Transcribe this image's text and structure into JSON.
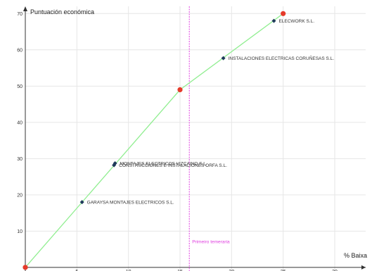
{
  "chart_data": {
    "type": "scatter",
    "title": "",
    "xlabel": "% Baixa",
    "ylabel": "Puntuación económica",
    "xlim": [
      0,
      33
    ],
    "ylim": [
      -1,
      72
    ],
    "xticks": [
      5,
      10,
      15,
      20,
      25,
      30
    ],
    "yticks": [
      10,
      20,
      30,
      40,
      50,
      60,
      70
    ],
    "grid": true,
    "colors": {
      "line": "#90ee90",
      "point": "#1f3a5a",
      "key_point": "#e53b2a",
      "threshold": "#e040e0",
      "grid": "#e6e6e6"
    },
    "curve": [
      {
        "x": 0,
        "y": 0
      },
      {
        "x": 15,
        "y": 49
      },
      {
        "x": 25,
        "y": 70
      }
    ],
    "key_points": [
      {
        "x": 0,
        "y": 0
      },
      {
        "x": 15,
        "y": 49
      },
      {
        "x": 25,
        "y": 70
      }
    ],
    "points": [
      {
        "label": "ELECWORK S.L.",
        "x": 24.1,
        "y": 68
      },
      {
        "label": "INSTALACIONES ELECTRICAS CORUÑESAS S.L.",
        "x": 19.2,
        "y": 57.7
      },
      {
        "label": "MONTAJES ELECTRICOS VIZCAINO S.L.",
        "x": 8.7,
        "y": 28.7
      },
      {
        "label": "CONSTRUCCIONES E INSTALACIONES ORFA S.L.",
        "x": 8.6,
        "y": 28.2
      },
      {
        "label": "GARAYSA MONTAJES ELECTRICOS S.L.",
        "x": 5.5,
        "y": 18
      }
    ],
    "threshold": {
      "x": 15.9,
      "label": "Primeiro temeraria"
    }
  }
}
